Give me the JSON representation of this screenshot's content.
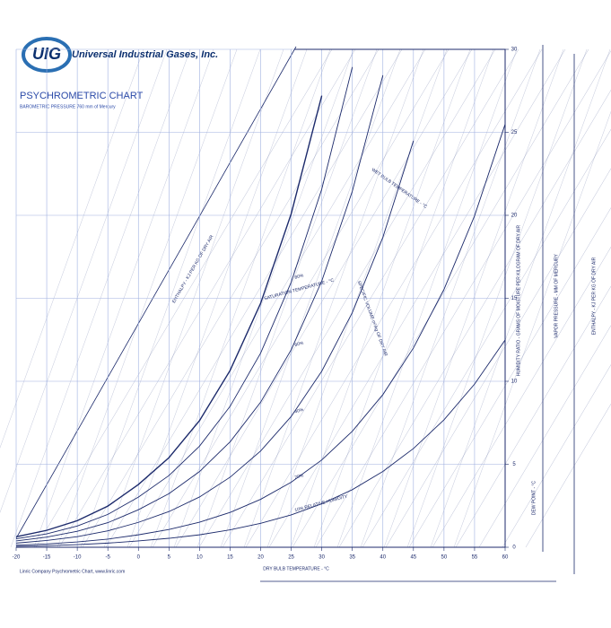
{
  "header": {
    "logo": "UIG",
    "company": "Universal Industrial Gases, Inc.",
    "title": "PSYCHROMETRIC CHART",
    "subtitle": "BAROMETRIC PRESSURE 760 mm of Mercury"
  },
  "footer": "Linric Company Psychrometric Chart, www.linric.com",
  "chart_data": {
    "type": "psychrometric",
    "x_label": "DRY BULB TEMPERATURE - °C",
    "y_label": "HUMIDITY RATIO - GRAMS OF MOISTURE PER KILOGRAM OF DRY AIR",
    "annotations": [
      "WET BULB TEMPERATURE - °C",
      "SPECIFIC VOLUME m³/kg OF DRY AIR",
      "ENTHALPY - KJ PER KG OF DRY AIR",
      "DEW POINT - °C",
      "VAPOR PRESSURE - MM OF MERCURY",
      "ENTHALPY - KJ PER KG OF DRY AIR"
    ],
    "xlim": [
      -20,
      60
    ],
    "xticks": [
      -20,
      -15,
      -10,
      -5,
      0,
      5,
      10,
      15,
      20,
      25,
      30,
      35,
      40,
      45,
      50,
      55,
      60
    ],
    "ylim": [
      0,
      30
    ],
    "yticks": [
      0,
      5,
      10,
      15,
      20,
      25,
      30
    ],
    "grid": true,
    "x": [
      -20,
      -15,
      -10,
      -5,
      0,
      5,
      10,
      15,
      20,
      25,
      30,
      35,
      40,
      45,
      50,
      55,
      60
    ],
    "series": [
      {
        "name": "SATURATION TEMPERATURE - °C",
        "color": "#1c2a6b",
        "values": [
          0.63,
          1.02,
          1.6,
          2.48,
          3.78,
          5.4,
          7.63,
          10.65,
          14.7,
          20.09,
          27.21,
          null,
          null,
          null,
          null,
          null,
          null
        ]
      },
      {
        "name": "80%",
        "color": "#1c2a6b",
        "values": [
          0.51,
          0.81,
          1.28,
          1.98,
          3.02,
          4.32,
          6.09,
          8.49,
          11.7,
          15.97,
          21.58,
          28.93,
          null,
          null,
          null,
          null,
          null
        ]
      },
      {
        "name": "60%",
        "color": "#1c2a6b",
        "values": [
          0.38,
          0.61,
          0.96,
          1.48,
          2.26,
          3.23,
          4.56,
          6.35,
          8.74,
          11.9,
          16.04,
          21.45,
          28.44,
          null,
          null,
          null,
          null
        ]
      },
      {
        "name": "40%",
        "color": "#1c2a6b",
        "values": [
          0.25,
          0.41,
          0.64,
          0.99,
          1.5,
          2.15,
          3.03,
          4.22,
          5.8,
          7.88,
          10.61,
          14.14,
          18.68,
          24.49,
          null,
          null,
          null
        ]
      },
      {
        "name": "20%",
        "color": "#1c2a6b",
        "values": [
          0.13,
          0.2,
          0.32,
          0.49,
          0.75,
          1.07,
          1.51,
          2.1,
          2.89,
          3.92,
          5.26,
          6.99,
          9.2,
          12.01,
          15.54,
          19.97,
          25.49
        ]
      },
      {
        "name": "10% RELATIVE HUMIDITY",
        "color": "#1c2a6b",
        "values": [
          0.06,
          0.1,
          0.16,
          0.25,
          0.38,
          0.54,
          0.75,
          1.05,
          1.44,
          1.95,
          2.62,
          3.47,
          4.57,
          5.95,
          7.68,
          9.83,
          12.49
        ]
      }
    ]
  }
}
